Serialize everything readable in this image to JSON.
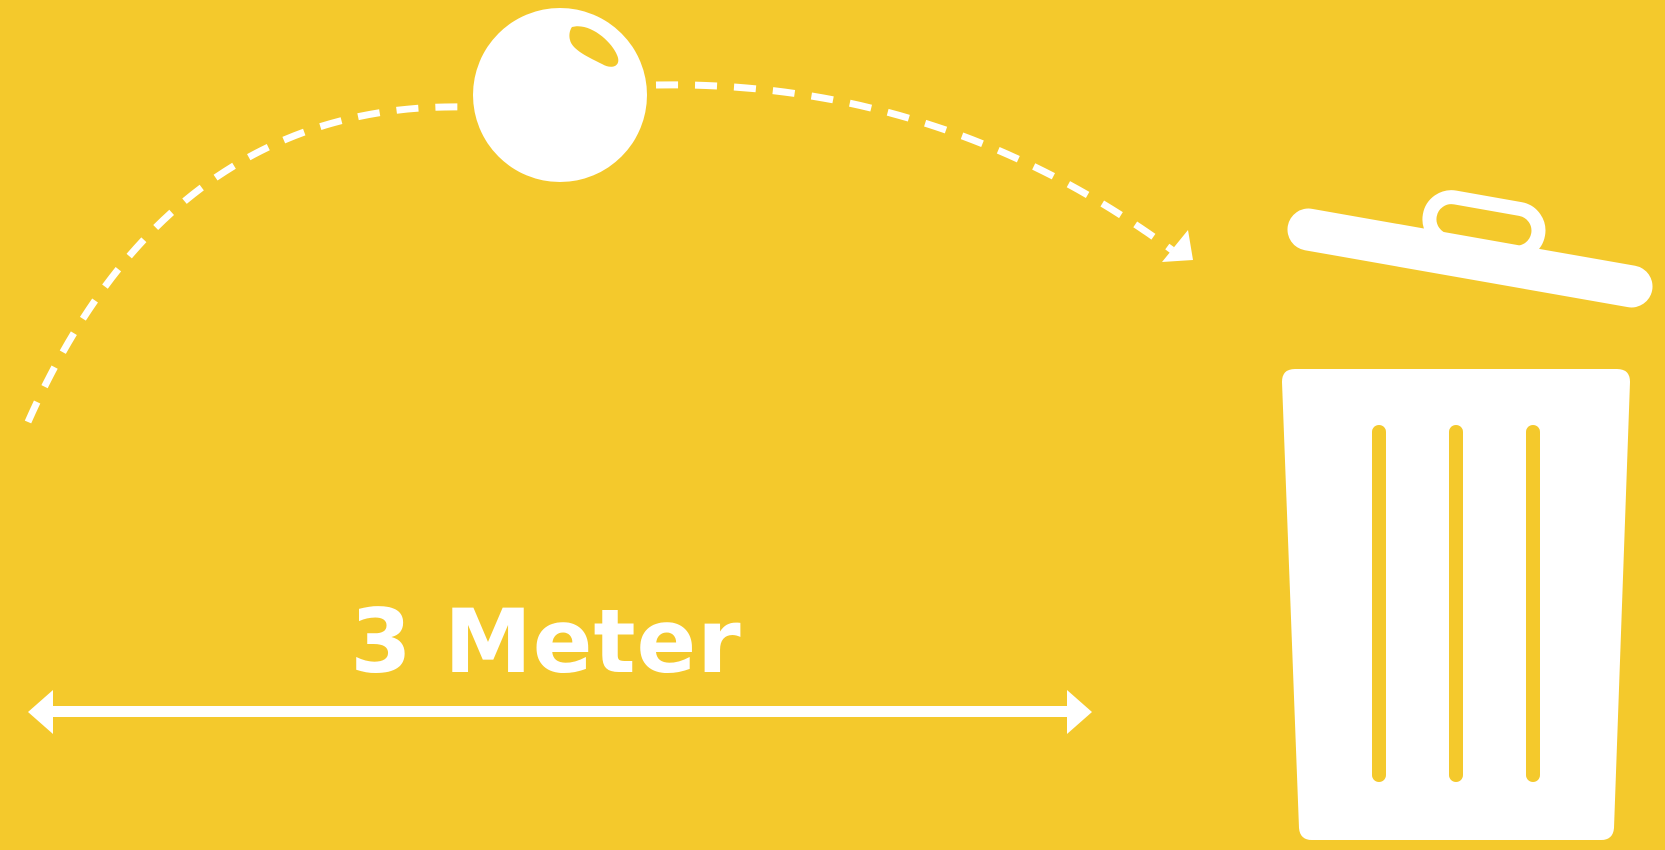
{
  "scene": {
    "background_color": "#F4C92C",
    "foreground_color": "#FFFFFF",
    "distance_label": "3 Meter",
    "icons": [
      "ball-icon",
      "trash-can-icon",
      "trash-lid-icon",
      "arrow-head-icon"
    ]
  }
}
